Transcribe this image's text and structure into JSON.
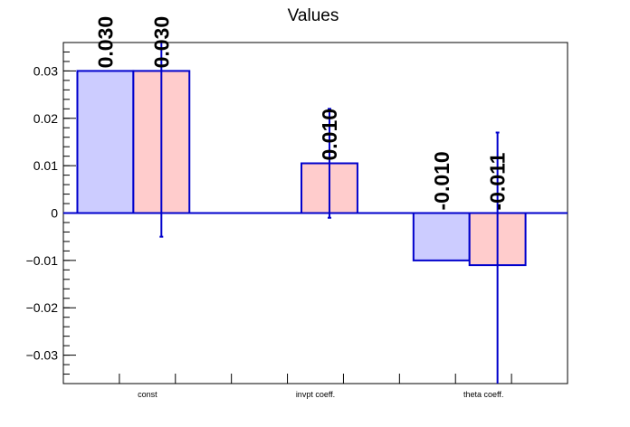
{
  "chart_data": {
    "type": "bar",
    "title": "Values",
    "xlabel": "",
    "ylabel": "",
    "categories": [
      "const",
      "invpt coeff.",
      "theta coeff."
    ],
    "ylim": [
      -0.036,
      0.036
    ],
    "yticks": [
      -0.03,
      -0.02,
      -0.01,
      0,
      0.01,
      0.02,
      0.03
    ],
    "ytick_labels": [
      "−0.03",
      "−0.02",
      "−0.01",
      "0",
      "0.01",
      "0.02",
      "0.03"
    ],
    "grid": false,
    "series": [
      {
        "color": "#ccccff",
        "values": [
          0.03,
          null,
          -0.01
        ],
        "errors": [
          null,
          null,
          null
        ],
        "labels": [
          "0.030",
          "",
          "-0.010"
        ]
      },
      {
        "color": "#ffcccc",
        "values": [
          0.03,
          0.0105,
          -0.011
        ],
        "errors": [
          0.035,
          0.0115,
          0.028
        ],
        "labels": [
          "0.030",
          "0.010",
          "-0.011"
        ]
      }
    ],
    "edge_color": "#0000cc"
  }
}
